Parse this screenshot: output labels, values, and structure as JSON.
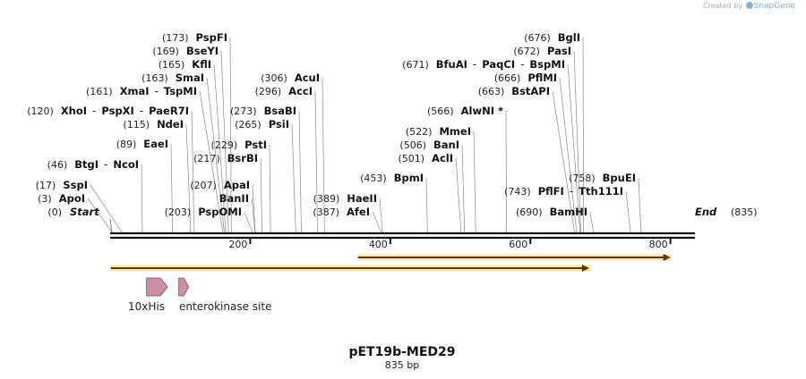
{
  "credit": {
    "prefix": "Created by",
    "brand": "SnapGene"
  },
  "map": {
    "name": "pET19b-MED29",
    "length_label": "835 bp",
    "length_bp": 835,
    "start_label": "Start",
    "start_pos": "(0)",
    "end_label": "End",
    "end_pos": "(835)",
    "ticks": [
      200,
      400,
      600,
      800
    ]
  },
  "sites": [
    {
      "pos": 3,
      "text": [
        "(3)",
        "ApoI"
      ]
    },
    {
      "pos": 17,
      "text": [
        "(17)",
        "SspI"
      ]
    },
    {
      "pos": 46,
      "text": [
        "(46)",
        "BtgI",
        "-",
        "NcoI"
      ]
    },
    {
      "pos": 89,
      "text": [
        "(89)",
        "EaeI"
      ]
    },
    {
      "pos": 115,
      "text": [
        "(115)",
        "NdeI"
      ]
    },
    {
      "pos": 120,
      "text": [
        "(120)",
        "XhoI",
        "-",
        "PspXI",
        "-",
        "PaeR7I"
      ]
    },
    {
      "pos": 161,
      "text": [
        "(161)",
        "XmaI",
        "-",
        "TspMI"
      ]
    },
    {
      "pos": 163,
      "text": [
        "(163)",
        "SmaI"
      ]
    },
    {
      "pos": 165,
      "text": [
        "(165)",
        "KflI"
      ]
    },
    {
      "pos": 169,
      "text": [
        "(169)",
        "BseYI"
      ]
    },
    {
      "pos": 173,
      "text": [
        "(173)",
        "PspFI"
      ]
    },
    {
      "pos": 203,
      "text": [
        "(203)",
        "PspOMI"
      ]
    },
    {
      "pos": 207,
      "text": [
        "(207)",
        "ApaI"
      ]
    },
    {
      "pos": 207,
      "text": [
        "BanII"
      ]
    },
    {
      "pos": 217,
      "text": [
        "(217)",
        "BsrBI"
      ]
    },
    {
      "pos": 229,
      "text": [
        "(229)",
        "PstI"
      ]
    },
    {
      "pos": 265,
      "text": [
        "(265)",
        "PsiI"
      ]
    },
    {
      "pos": 273,
      "text": [
        "(273)",
        "BsaBI"
      ]
    },
    {
      "pos": 296,
      "text": [
        "(296)",
        "AccI"
      ]
    },
    {
      "pos": 306,
      "text": [
        "(306)",
        "AcuI"
      ]
    },
    {
      "pos": 387,
      "text": [
        "(387)",
        "AfeI"
      ]
    },
    {
      "pos": 389,
      "text": [
        "(389)",
        "HaeII"
      ]
    },
    {
      "pos": 453,
      "text": [
        "(453)",
        "BpmI"
      ]
    },
    {
      "pos": 501,
      "text": [
        "(501)",
        "AclI"
      ]
    },
    {
      "pos": 506,
      "text": [
        "(506)",
        "BanI"
      ]
    },
    {
      "pos": 522,
      "text": [
        "(522)",
        "MmeI"
      ]
    },
    {
      "pos": 566,
      "text": [
        "(566)",
        "AlwNI *"
      ]
    },
    {
      "pos": 663,
      "text": [
        "(663)",
        "BstAPI"
      ]
    },
    {
      "pos": 666,
      "text": [
        "(666)",
        "PflMI"
      ]
    },
    {
      "pos": 671,
      "text": [
        "(671)",
        "BfuAI",
        "-",
        "PaqCI",
        "-",
        "BspMI"
      ]
    },
    {
      "pos": 672,
      "text": [
        "(672)",
        "PasI"
      ]
    },
    {
      "pos": 676,
      "text": [
        "(676)",
        "BglI"
      ]
    },
    {
      "pos": 690,
      "text": [
        "(690)",
        "BamHI"
      ]
    },
    {
      "pos": 743,
      "text": [
        "(743)",
        "PflFI",
        "-",
        "Tth111I"
      ]
    },
    {
      "pos": 758,
      "text": [
        "(758)",
        "BpuEI"
      ]
    }
  ],
  "orf_arrows": [
    {
      "start": 1,
      "end": 684,
      "color": "#f5c542"
    },
    {
      "start": 354,
      "end": 800,
      "color": "#f5c542"
    }
  ],
  "features": [
    {
      "label": "10xHis",
      "start": 52,
      "end": 82,
      "color": "#c98fa6"
    },
    {
      "label": "enterokinase site",
      "start": 98,
      "end": 112,
      "color": "#c98fa6"
    }
  ]
}
